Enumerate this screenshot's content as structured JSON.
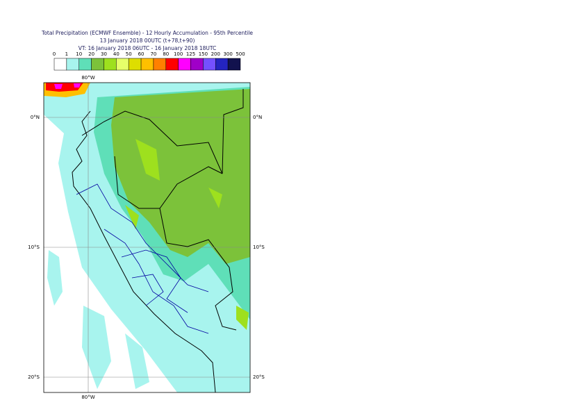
{
  "header": {
    "title": "Total Precipitation (ECMWF Ensemble) - 12 Hourly Accumulation - 95th Percentile",
    "line2": "13 January 2018 00UTC (t+78,t+90)",
    "line3": "VT: 16 January 2018 06UTC - 16 January 2018 18UTC"
  },
  "legend": {
    "labels": [
      "0",
      "1",
      "10",
      "20",
      "30",
      "40",
      "50",
      "60",
      "70",
      "80",
      "100",
      "125",
      "150",
      "200",
      "300",
      "500"
    ],
    "colors": [
      "#ffffff",
      "#a8f4ee",
      "#5fdfb8",
      "#7cc23a",
      "#9ee01e",
      "#e6ff6a",
      "#dede00",
      "#ffc000",
      "#ff8000",
      "#ff0000",
      "#ff00ff",
      "#a000c8",
      "#7450ff",
      "#2424c0",
      "#12124e"
    ]
  },
  "map": {
    "lon_top": "80°W",
    "lon_bottom": "80°W",
    "lat_left": [
      "0°N",
      "10°S",
      "20°S"
    ],
    "lat_right": [
      "0°N",
      "10°S",
      "20°S"
    ]
  }
}
